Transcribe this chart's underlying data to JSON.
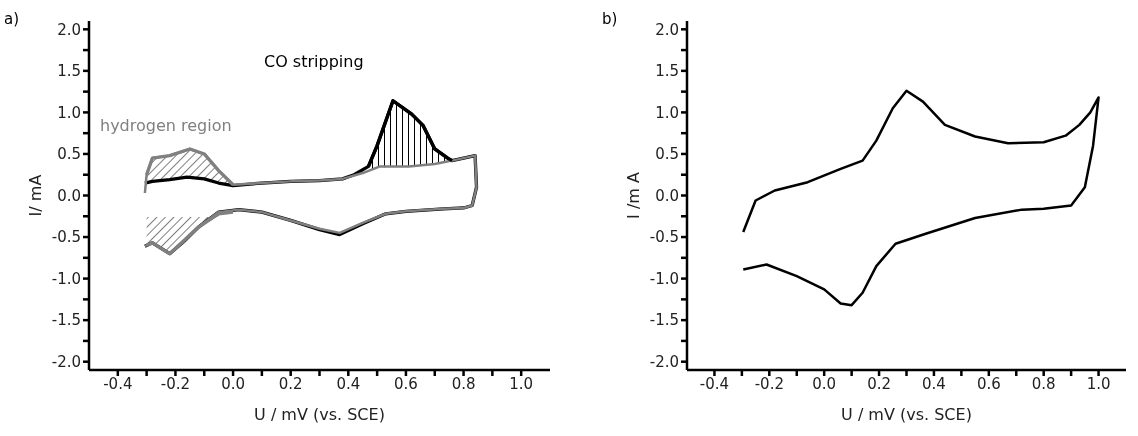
{
  "chart_data": [
    {
      "type": "line",
      "title": "a)",
      "xlabel": "U / mV (vs. SCE)",
      "ylabel": "I/ mA",
      "xlim": [
        -0.5,
        1.1
      ],
      "ylim": [
        -2.1,
        2.1
      ],
      "xticks": [
        {
          "value": -0.4,
          "label": "-0.4"
        },
        {
          "value": -0.3,
          "label": null
        },
        {
          "value": -0.2,
          "label": "-0.2"
        },
        {
          "value": -0.1,
          "label": null
        },
        {
          "value": 0,
          "label": "0.0"
        },
        {
          "value": 0.1,
          "label": null
        },
        {
          "value": 0.2,
          "label": "0.2"
        },
        {
          "value": 0.3,
          "label": null
        },
        {
          "value": 0.4,
          "label": "0.4"
        },
        {
          "value": 0.5,
          "label": null
        },
        {
          "value": 0.6,
          "label": "0.6"
        },
        {
          "value": 0.7,
          "label": null
        },
        {
          "value": 0.8,
          "label": "0.8"
        },
        {
          "value": 0.9,
          "label": null
        },
        {
          "value": 1.0,
          "label": "1.0"
        }
      ],
      "yticks": [
        {
          "value": -2,
          "label": "-2.0"
        },
        {
          "value": -1.75,
          "label": null
        },
        {
          "value": -1.5,
          "label": "-1.5"
        },
        {
          "value": -1.25,
          "label": null
        },
        {
          "value": -1,
          "label": "-1.0"
        },
        {
          "value": -0.75,
          "label": null
        },
        {
          "value": -0.5,
          "label": "-0.5"
        },
        {
          "value": -0.25,
          "label": null
        },
        {
          "value": 0,
          "label": "0.0"
        },
        {
          "value": 0.25,
          "label": null
        },
        {
          "value": 0.5,
          "label": "0.5"
        },
        {
          "value": 0.75,
          "label": null
        },
        {
          "value": 1,
          "label": "1.0"
        },
        {
          "value": 1.25,
          "label": null
        },
        {
          "value": 1.5,
          "label": "1.5"
        },
        {
          "value": 1.75,
          "label": null
        },
        {
          "value": 2,
          "label": "2.0"
        }
      ],
      "annotations": [
        "CO stripping",
        "hydrogen region"
      ],
      "series": [
        {
          "color": "#000000",
          "x": [
            -0.306,
            -0.28,
            -0.22,
            -0.16,
            -0.1,
            -0.05,
            0.0,
            0.1,
            0.2,
            0.3,
            0.38,
            0.42,
            0.47,
            0.5,
            0.555,
            0.62,
            0.66,
            0.7,
            0.745,
            0.76,
            0.84,
            0.845,
            0.83,
            0.8,
            0.73,
            0.6,
            0.53,
            0.45,
            0.37,
            0.3,
            0.2,
            0.1,
            0.02,
            -0.05,
            -0.12,
            -0.17,
            -0.22,
            -0.28,
            -0.306
          ],
          "values": [
            0.15,
            0.17,
            0.19,
            0.22,
            0.2,
            0.15,
            0.12,
            0.15,
            0.17,
            0.18,
            0.2,
            0.25,
            0.35,
            0.6,
            1.14,
            0.98,
            0.84,
            0.56,
            0.45,
            0.42,
            0.48,
            0.1,
            -0.12,
            -0.15,
            -0.16,
            -0.19,
            -0.22,
            -0.34,
            -0.47,
            -0.41,
            -0.3,
            -0.2,
            -0.17,
            -0.2,
            -0.38,
            -0.55,
            -0.7,
            -0.57,
            -0.61
          ]
        },
        {
          "color": "#808080",
          "x": [
            -0.306,
            -0.3,
            -0.28,
            -0.22,
            -0.15,
            -0.1,
            -0.05,
            0.0,
            0.1,
            0.2,
            0.3,
            0.38,
            0.45,
            0.51,
            0.61,
            0.7,
            0.76,
            0.84,
            0.845,
            0.83,
            0.8,
            0.73,
            0.6,
            0.53,
            0.45,
            0.37,
            0.3,
            0.2,
            0.1,
            0.02,
            -0.05,
            -0.12,
            -0.17,
            -0.22,
            -0.28,
            -0.306
          ],
          "values": [
            0.03,
            0.25,
            0.45,
            0.48,
            0.56,
            0.5,
            0.3,
            0.13,
            0.15,
            0.17,
            0.18,
            0.2,
            0.27,
            0.35,
            0.35,
            0.38,
            0.42,
            0.48,
            0.1,
            -0.12,
            -0.15,
            -0.16,
            -0.19,
            -0.22,
            -0.33,
            -0.45,
            -0.4,
            -0.3,
            -0.2,
            -0.17,
            -0.2,
            -0.38,
            -0.55,
            -0.7,
            -0.57,
            -0.61
          ]
        },
        {
          "color": "#808080",
          "x": [
            -0.3,
            -0.28,
            -0.22,
            -0.15,
            -0.1,
            -0.05,
            0.0
          ],
          "values": [
            0.25,
            0.45,
            0.48,
            0.56,
            0.5,
            0.3,
            0.13
          ],
          "lower": [
            0.16,
            0.17,
            0.19,
            0.22,
            0.2,
            0.15,
            0.12
          ],
          "upper": [
            0.25,
            0.45,
            0.48,
            0.56,
            0.5,
            0.3,
            0.13
          ]
        },
        {
          "color": "#808080",
          "x": [
            -0.3,
            -0.28,
            -0.22,
            -0.12,
            -0.05,
            0.0
          ],
          "values": [
            -0.6,
            -0.57,
            -0.7,
            -0.38,
            -0.22,
            -0.2
          ],
          "lower": [
            -0.6,
            -0.57,
            -0.7,
            -0.38,
            -0.22,
            -0.2
          ],
          "upper": [
            -0.26,
            -0.26,
            -0.26,
            -0.26,
            -0.26,
            -0.2
          ]
        },
        {
          "color": "#000000",
          "x": [
            0.47,
            0.5,
            0.555,
            0.62,
            0.66,
            0.7,
            0.745,
            0.76
          ],
          "values": [
            0.35,
            0.6,
            1.14,
            0.98,
            0.84,
            0.56,
            0.45,
            0.42
          ],
          "lower": [
            0.3,
            0.33,
            0.35,
            0.35,
            0.36,
            0.38,
            0.41,
            0.42
          ],
          "upper": [
            0.35,
            0.6,
            1.14,
            0.98,
            0.84,
            0.56,
            0.45,
            0.42
          ]
        }
      ]
    },
    {
      "type": "line",
      "title": "b)",
      "xlabel": "U / mV (vs. SCE)",
      "ylabel": "I /m A",
      "xlim": [
        -0.5,
        1.1
      ],
      "ylim": [
        -2.1,
        2.1
      ],
      "xticks": [
        {
          "value": -0.4,
          "label": "-0.4"
        },
        {
          "value": -0.3,
          "label": null
        },
        {
          "value": -0.2,
          "label": "-0.2"
        },
        {
          "value": -0.1,
          "label": null
        },
        {
          "value": 0,
          "label": "0.0"
        },
        {
          "value": 0.1,
          "label": null
        },
        {
          "value": 0.2,
          "label": "0.2"
        },
        {
          "value": 0.3,
          "label": null
        },
        {
          "value": 0.4,
          "label": "0.4"
        },
        {
          "value": 0.5,
          "label": null
        },
        {
          "value": 0.6,
          "label": "0.6"
        },
        {
          "value": 0.7,
          "label": null
        },
        {
          "value": 0.8,
          "label": "0.8"
        },
        {
          "value": 0.9,
          "label": null
        },
        {
          "value": 1.0,
          "label": "1.0"
        }
      ],
      "yticks": [
        {
          "value": -2,
          "label": "-2.0"
        },
        {
          "value": -1.75,
          "label": null
        },
        {
          "value": -1.5,
          "label": "-1.5"
        },
        {
          "value": -1.25,
          "label": null
        },
        {
          "value": -1,
          "label": "-1.0"
        },
        {
          "value": -0.75,
          "label": null
        },
        {
          "value": -0.5,
          "label": "-0.5"
        },
        {
          "value": -0.25,
          "label": null
        },
        {
          "value": 0,
          "label": "0.0"
        },
        {
          "value": 0.25,
          "label": null
        },
        {
          "value": 0.5,
          "label": "0.5"
        },
        {
          "value": 0.75,
          "label": null
        },
        {
          "value": 1,
          "label": "1.0"
        },
        {
          "value": 1.25,
          "label": null
        },
        {
          "value": 1.5,
          "label": "1.5"
        },
        {
          "value": 1.75,
          "label": null
        },
        {
          "value": 2,
          "label": "2.0"
        }
      ],
      "series": [
        {
          "color": "#000000",
          "x": [
            -0.295,
            -0.25,
            -0.18,
            -0.06,
            0.06,
            0.14,
            0.19,
            0.25,
            0.3,
            0.36,
            0.44,
            0.55,
            0.67,
            0.8,
            0.88,
            0.93,
            0.97,
            1.0,
            0.98,
            0.95,
            0.9,
            0.8,
            0.72,
            0.55,
            0.37,
            0.26,
            0.19,
            0.14,
            0.1,
            0.06,
            0.0,
            -0.1,
            -0.21,
            -0.295
          ],
          "values": [
            -0.44,
            -0.06,
            0.06,
            0.16,
            0.32,
            0.42,
            0.66,
            1.05,
            1.26,
            1.13,
            0.85,
            0.71,
            0.63,
            0.64,
            0.72,
            0.85,
            1.0,
            1.18,
            0.6,
            0.1,
            -0.12,
            -0.16,
            -0.17,
            -0.27,
            -0.46,
            -0.58,
            -0.85,
            -1.17,
            -1.32,
            -1.3,
            -1.13,
            -0.97,
            -0.83,
            -0.89
          ]
        }
      ]
    }
  ]
}
